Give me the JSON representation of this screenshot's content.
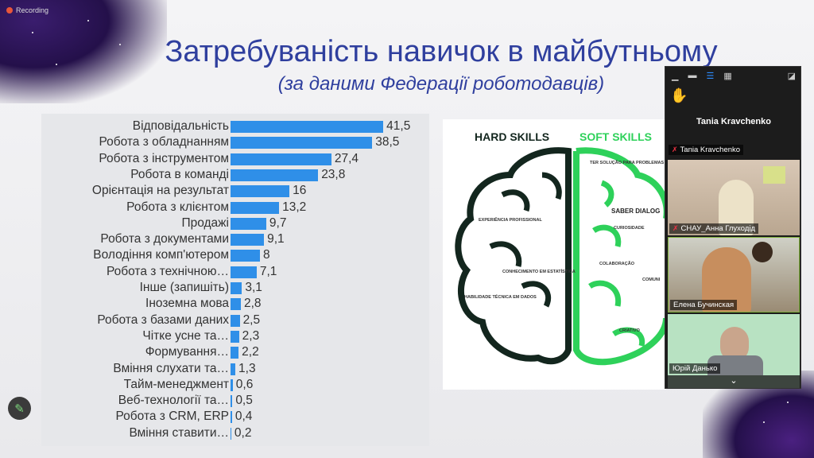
{
  "recording": {
    "label": "Recording"
  },
  "slide": {
    "title": "Затребуваність навичок в майбутньому",
    "subtitle": "(за даними Федерації роботодавців)"
  },
  "chart_data": {
    "type": "bar",
    "orientation": "horizontal",
    "categories": [
      "Відповідальність",
      "Робота з обладнанням",
      "Робота з інструментом",
      "Робота в команді",
      "Орієнтація на результат",
      "Робота з клієнтом",
      "Продажі",
      "Робота з документами",
      "Володіння комп'ютером",
      "Робота з технічною…",
      "Інше (запишіть)",
      "Іноземна мова",
      "Робота з базами даних",
      "Чітке усне та…",
      "Формування…",
      "Вміння слухати та…",
      "Тайм-менеджмент",
      "Веб-технології та…",
      "Робота з CRM, ERP",
      "Вміння ставити…"
    ],
    "values": [
      41.5,
      38.5,
      27.4,
      23.8,
      16,
      13.2,
      9.7,
      9.1,
      8,
      7.1,
      3.1,
      2.8,
      2.5,
      2.3,
      2.2,
      1.3,
      0.6,
      0.5,
      0.4,
      0.2
    ],
    "value_labels": [
      "41,5",
      "38,5",
      "27,4",
      "23,8",
      "16",
      "13,2",
      "9,7",
      "9,1",
      "8",
      "7,1",
      "3,1",
      "2,8",
      "2,5",
      "2,3",
      "2,2",
      "1,3",
      "0,6",
      "0,5",
      "0,4",
      "0,2"
    ],
    "bar_color": "#2f8fe8"
  },
  "brain": {
    "hard_title": "HARD SKILLS",
    "soft_title": "SOFT SKILLS",
    "hard_items": [
      "EXPERIÊNCIA PROFISSIONAL",
      "CONHECIMENTO EM ESTATÍSTICA",
      "HABILIDADE TÉCNICA EM DADOS"
    ],
    "soft_items": [
      "TER SOLUÇÃO PARA PROBLEMAS",
      "SABER DIALOG",
      "CURIOSIDADE",
      "COLABORAÇÃO",
      "COMUNI",
      "CRIATIVO"
    ],
    "hard_color": "#13261e",
    "soft_color": "#2ed15a"
  },
  "zoom_panel": {
    "host_name": "Tania Kravchenko",
    "participants": [
      {
        "name": "Tania Kravchenko",
        "muted": true
      },
      {
        "name": "СНАУ_Анна Глуходід",
        "muted": true
      },
      {
        "name": "Елена Бучинская",
        "muted": false
      },
      {
        "name": "Юрій Данько",
        "muted": false
      }
    ]
  }
}
